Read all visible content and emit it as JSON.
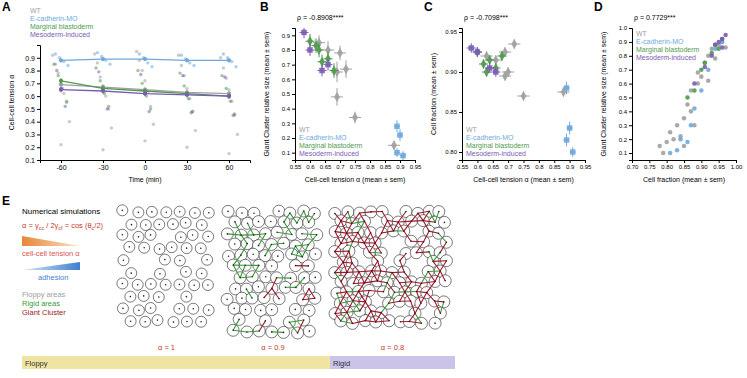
{
  "chart_data": [
    {
      "type": "line",
      "title": "A",
      "xlabel": "Time (min)",
      "ylabel": "Cell-cell tension α",
      "xlim": [
        -75,
        75
      ],
      "xticks": [
        -60,
        -30,
        0,
        30,
        60
      ],
      "ylim": [
        0.1,
        1.0
      ],
      "yticks": [
        0.1,
        0.2,
        0.3,
        0.4,
        0.5,
        0.6,
        0.7,
        0.8,
        0.9
      ],
      "legend": "top",
      "series": [
        {
          "name": "WT",
          "color": "#a0a0a0",
          "type": "line",
          "marker": "circle",
          "x": [
            -60,
            -30,
            0,
            30,
            60
          ],
          "values": [
            0.69,
            0.67,
            0.65,
            0.63,
            0.62
          ],
          "errors": [
            0.02,
            0.02,
            0.02,
            0.02,
            0.02
          ],
          "points_x": [
            -66,
            -64,
            -62,
            -60,
            -58,
            -56,
            -54,
            -60,
            -36,
            -34,
            -32,
            -30,
            -28,
            -26,
            -24,
            -30,
            -6,
            -4,
            -2,
            0,
            2,
            4,
            6,
            0,
            24,
            26,
            28,
            30,
            32,
            34,
            36,
            30,
            54,
            56,
            58,
            60,
            62,
            64,
            66,
            60
          ],
          "points_y": [
            0.92,
            0.85,
            0.78,
            0.7,
            0.62,
            0.55,
            0.4,
            0.22,
            0.93,
            0.86,
            0.75,
            0.68,
            0.6,
            0.5,
            0.35,
            0.18,
            0.95,
            0.88,
            0.8,
            0.72,
            0.63,
            0.52,
            0.38,
            0.25,
            0.92,
            0.84,
            0.76,
            0.66,
            0.58,
            0.48,
            0.33,
            0.2,
            0.9,
            0.82,
            0.74,
            0.65,
            0.56,
            0.45,
            0.3,
            0.15
          ]
        },
        {
          "name": "E-cadherin-MO",
          "color": "#6fa8dc",
          "type": "line",
          "marker": "circle",
          "x": [
            -60,
            -30,
            0,
            30,
            60
          ],
          "values": [
            0.88,
            0.89,
            0.89,
            0.88,
            0.88
          ],
          "errors": [
            0.015,
            0.015,
            0.015,
            0.015,
            0.015
          ],
          "points_x": [
            -64,
            -61,
            -58,
            -55,
            -34,
            -31,
            -28,
            -25,
            -4,
            -1,
            2,
            5,
            26,
            29,
            32,
            35,
            56,
            59,
            62,
            65
          ],
          "points_y": [
            0.93,
            0.9,
            0.87,
            0.84,
            0.94,
            0.91,
            0.88,
            0.85,
            0.93,
            0.9,
            0.86,
            0.83,
            0.92,
            0.89,
            0.86,
            0.84,
            0.93,
            0.9,
            0.87,
            0.83
          ]
        },
        {
          "name": "Marginal blastoderm",
          "color": "#4f9a4f",
          "type": "line",
          "marker": "circle",
          "x": [
            -60,
            -30,
            0,
            30,
            60
          ],
          "values": [
            0.72,
            0.66,
            0.64,
            0.62,
            0.6
          ],
          "errors": [
            0.02,
            0.02,
            0.02,
            0.02,
            0.02
          ],
          "points_x": [
            -65,
            -62,
            -59,
            -56,
            -35,
            -32,
            -29,
            -26,
            -5,
            -2,
            1,
            4,
            25,
            28,
            31,
            34,
            55,
            58,
            61,
            64
          ],
          "points_y": [
            0.85,
            0.76,
            0.66,
            0.56,
            0.82,
            0.72,
            0.62,
            0.52,
            0.8,
            0.7,
            0.6,
            0.5,
            0.78,
            0.68,
            0.58,
            0.48,
            0.76,
            0.66,
            0.56,
            0.46
          ]
        },
        {
          "name": "Mesoderm-induced",
          "color": "#7a5bb5",
          "type": "line",
          "marker": "circle",
          "x": [
            -60,
            -30,
            0,
            30,
            60
          ],
          "values": [
            0.65,
            0.64,
            0.62,
            0.61,
            0.6
          ],
          "errors": [
            0.02,
            0.02,
            0.02,
            0.02,
            0.02
          ],
          "points_x": [
            -63,
            -60,
            -57,
            -33,
            -30,
            -27,
            -3,
            0,
            3,
            27,
            30,
            33,
            57,
            60,
            63
          ],
          "points_y": [
            0.8,
            0.66,
            0.52,
            0.79,
            0.65,
            0.5,
            0.77,
            0.62,
            0.48,
            0.76,
            0.61,
            0.47,
            0.75,
            0.6,
            0.45
          ]
        }
      ]
    },
    {
      "type": "scatter",
      "title": "B",
      "xlabel": "Cell-cell tension α (mean ± sem)",
      "ylabel": "Giant Cluster relative size (mean ± sem)",
      "annotations": [
        "ρ = -0.8908****"
      ],
      "xlim": [
        0.55,
        0.95
      ],
      "xticks": [
        0.55,
        0.6,
        0.65,
        0.7,
        0.75,
        0.8,
        0.85,
        0.9,
        0.95
      ],
      "ylim": [
        0.05,
        0.95
      ],
      "yticks": [
        0.1,
        0.2,
        0.3,
        0.4,
        0.5,
        0.6,
        0.7,
        0.8,
        0.9
      ],
      "legend": "bottom-left",
      "series": [
        {
          "name": "WT",
          "color": "#a0a0a0",
          "marker": "diamond",
          "x": [
            0.63,
            0.66,
            0.7,
            0.69,
            0.72,
            0.75,
            0.69,
            0.88
          ],
          "values": [
            0.85,
            0.8,
            0.78,
            0.65,
            0.67,
            0.34,
            0.48,
            0.15
          ],
          "x_errors": [
            0.02,
            0.02,
            0.02,
            0.02,
            0.02,
            0.02,
            0.02,
            0.02
          ],
          "errors": [
            0.05,
            0.06,
            0.05,
            0.07,
            0.06,
            0.04,
            0.06,
            0.03
          ]
        },
        {
          "name": "E-cadherin-MO",
          "color": "#6fa8dc",
          "marker": "square",
          "x": [
            0.89,
            0.9,
            0.89,
            0.91
          ],
          "values": [
            0.28,
            0.22,
            0.1,
            0.08
          ],
          "x_errors": [
            0.01,
            0.01,
            0.01,
            0.01
          ],
          "errors": [
            0.04,
            0.04,
            0.03,
            0.03
          ]
        },
        {
          "name": "Marginal blastoderm",
          "color": "#4f9a4f",
          "marker": "diamond",
          "x": [
            0.6,
            0.62,
            0.64,
            0.66,
            0.68,
            0.63
          ],
          "values": [
            0.86,
            0.83,
            0.72,
            0.74,
            0.66,
            0.8
          ],
          "x_errors": [
            0.015,
            0.015,
            0.015,
            0.015,
            0.015,
            0.015
          ],
          "errors": [
            0.05,
            0.05,
            0.05,
            0.05,
            0.05,
            0.05
          ]
        },
        {
          "name": "Mesoderm-induced",
          "color": "#7a5bb5",
          "marker": "square",
          "x": [
            0.58,
            0.6,
            0.64,
            0.66
          ],
          "values": [
            0.92,
            0.8,
            0.66,
            0.7
          ],
          "x_errors": [
            0.015,
            0.015,
            0.015,
            0.015
          ],
          "errors": [
            0.04,
            0.04,
            0.04,
            0.04
          ]
        }
      ]
    },
    {
      "type": "scatter",
      "title": "C",
      "xlabel": "Cell-cell tension α (mean ± sem)",
      "ylabel": "Cell fraction (mean ± sem)",
      "annotations": [
        "ρ = -0.7098***"
      ],
      "xlim": [
        0.55,
        0.95
      ],
      "xticks": [
        0.55,
        0.6,
        0.65,
        0.7,
        0.75,
        0.8,
        0.85,
        0.9,
        0.95
      ],
      "ylim": [
        0.79,
        0.955
      ],
      "yticks": [
        {
          "value": 0.8,
          "label": "0.80"
        },
        0.85,
        {
          "value": 0.9,
          "label": "0.90"
        },
        0.95
      ],
      "legend": "bottom-left",
      "series": [
        {
          "name": "WT",
          "color": "#a0a0a0",
          "marker": "diamond",
          "x": [
            0.63,
            0.66,
            0.7,
            0.69,
            0.72,
            0.75,
            0.69,
            0.88
          ],
          "values": [
            0.92,
            0.915,
            0.9,
            0.925,
            0.935,
            0.87,
            0.895,
            0.875
          ],
          "x_errors": [
            0.02,
            0.02,
            0.02,
            0.02,
            0.02,
            0.02,
            0.02,
            0.02
          ],
          "errors": [
            0.006,
            0.006,
            0.006,
            0.006,
            0.006,
            0.006,
            0.006,
            0.006
          ]
        },
        {
          "name": "E-cadherin-MO",
          "color": "#6fa8dc",
          "marker": "square",
          "x": [
            0.89,
            0.9,
            0.89,
            0.91
          ],
          "values": [
            0.88,
            0.83,
            0.815,
            0.8
          ],
          "x_errors": [
            0.01,
            0.01,
            0.01,
            0.01
          ],
          "errors": [
            0.008,
            0.008,
            0.008,
            0.006
          ]
        },
        {
          "name": "Marginal blastoderm",
          "color": "#4f9a4f",
          "marker": "diamond",
          "x": [
            0.6,
            0.62,
            0.64,
            0.66,
            0.68,
            0.63
          ],
          "values": [
            0.925,
            0.91,
            0.915,
            0.905,
            0.92,
            0.9
          ],
          "x_errors": [
            0.015,
            0.015,
            0.015,
            0.015,
            0.015,
            0.015
          ],
          "errors": [
            0.006,
            0.006,
            0.006,
            0.006,
            0.006,
            0.006
          ]
        },
        {
          "name": "Mesoderm-induced",
          "color": "#7a5bb5",
          "marker": "square",
          "x": [
            0.58,
            0.6,
            0.64,
            0.66
          ],
          "values": [
            0.93,
            0.925,
            0.905,
            0.9
          ],
          "x_errors": [
            0.015,
            0.015,
            0.015,
            0.015
          ],
          "errors": [
            0.006,
            0.006,
            0.006,
            0.006
          ]
        }
      ]
    },
    {
      "type": "scatter",
      "title": "D",
      "xlabel": "Cell fraction (mean ± sem)",
      "ylabel": "Giant Cluster relative size (mean ± sem)",
      "annotations": [
        "ρ = 0.7729***"
      ],
      "xlim": [
        0.7,
        1.0
      ],
      "xticks": [
        {
          "value": 0.7,
          "label": "0.70"
        },
        0.75,
        {
          "value": 0.8,
          "label": "0.80"
        },
        0.85,
        {
          "value": 0.9,
          "label": "0.90"
        },
        0.95,
        {
          "value": 1,
          "label": "1.00"
        }
      ],
      "ylim": [
        0.05,
        1.0
      ],
      "yticks": [
        0.1,
        0.2,
        0.3,
        0.4,
        0.5,
        0.6,
        0.7,
        0.8,
        0.9,
        {
          "value": 1,
          "label": "1.0"
        }
      ],
      "legend": "top-left",
      "series": [
        {
          "name": "WT",
          "color": "#a0a0a0",
          "marker": "circle",
          "x": [
            0.78,
            0.79,
            0.8,
            0.81,
            0.82,
            0.83,
            0.84,
            0.85,
            0.85,
            0.86,
            0.87,
            0.87,
            0.88,
            0.89,
            0.89,
            0.9,
            0.91,
            0.92,
            0.92,
            0.93,
            0.94,
            0.95,
            0.96,
            0.97
          ],
          "values": [
            0.15,
            0.1,
            0.18,
            0.25,
            0.2,
            0.3,
            0.22,
            0.35,
            0.15,
            0.45,
            0.4,
            0.55,
            0.3,
            0.6,
            0.68,
            0.65,
            0.75,
            0.62,
            0.8,
            0.85,
            0.78,
            0.88,
            0.9,
            0.86
          ]
        },
        {
          "name": "E-cadherin-MO",
          "color": "#6fa8dc",
          "marker": "circle",
          "x": [
            0.81,
            0.83,
            0.84,
            0.86,
            0.87,
            0.88,
            0.9,
            0.92,
            0.94,
            0.96
          ],
          "values": [
            0.1,
            0.12,
            0.2,
            0.18,
            0.3,
            0.42,
            0.55,
            0.7,
            0.85,
            0.9
          ]
        },
        {
          "name": "Marginal blastoderm",
          "color": "#4f9a4f",
          "marker": "circle",
          "x": [
            0.86,
            0.88,
            0.9,
            0.91,
            0.93,
            0.94,
            0.95,
            0.96
          ],
          "values": [
            0.5,
            0.55,
            0.7,
            0.75,
            0.82,
            0.88,
            0.85,
            0.92
          ]
        },
        {
          "name": "Mesoderm-induced",
          "color": "#7a5bb5",
          "marker": "circle",
          "x": [
            0.88,
            0.91,
            0.93,
            0.94,
            0.95,
            0.96,
            0.96,
            0.97
          ],
          "values": [
            0.6,
            0.72,
            0.8,
            0.88,
            0.9,
            0.92,
            0.86,
            0.95
          ]
        }
      ]
    }
  ],
  "diagram": {
    "title": "E",
    "heading": "Numerical simulations",
    "formula": [
      {
        "text": "α = γ"
      },
      {
        "text": "cc",
        "sub": true
      },
      {
        "text": " / 2γ"
      },
      {
        "text": "cf",
        "sub": true
      },
      {
        "text": " = cos (θ"
      },
      {
        "text": "c",
        "sub": true
      },
      {
        "text": "/2)"
      }
    ],
    "tension_label": "cell-cell tension α",
    "adhesion_label": "adhesion",
    "keys": [
      {
        "name": "Floppy areas",
        "color": "#9e9e9e"
      },
      {
        "name": "Rigid areas",
        "color": "#3a9a3a"
      },
      {
        "name": "Giant Cluster",
        "color": "#a0182a"
      }
    ],
    "panels": [
      "α = 1",
      "α = 0.9",
      "α = 0.8"
    ],
    "regimes": [
      {
        "name": "Floppy",
        "color": "#efe4a1"
      },
      {
        "name": "Rigid",
        "color": "#cbc3e8"
      }
    ]
  }
}
